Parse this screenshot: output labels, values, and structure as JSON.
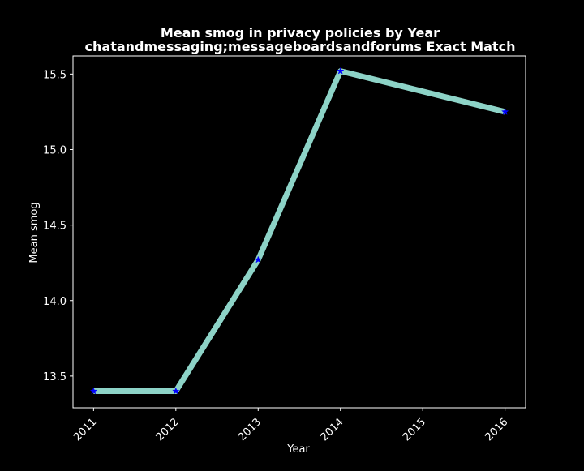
{
  "chart_data": {
    "type": "line",
    "title": "Mean smog in privacy policies by Year",
    "subtitle": "chatandmessaging;messageboardsandforums Exact Match",
    "xlabel": "Year",
    "ylabel": "Mean smog",
    "x": [
      2011,
      2012,
      2013,
      2014,
      2016
    ],
    "x_ticks": [
      "2011",
      "2012",
      "2013",
      "2014",
      "2015",
      "2016"
    ],
    "series": [
      {
        "values": [
          13.4,
          13.4,
          14.27,
          15.52,
          15.25
        ]
      }
    ],
    "y_ticks": [
      "13.5",
      "14.0",
      "14.5",
      "15.0",
      "15.5"
    ],
    "xlim": [
      2010.75,
      2016.25
    ],
    "ylim": [
      13.29,
      15.62
    ],
    "grid": false,
    "background": "#000000",
    "line_color": "#8dd3c7",
    "marker_color": "#0000ff",
    "marker": "star"
  }
}
